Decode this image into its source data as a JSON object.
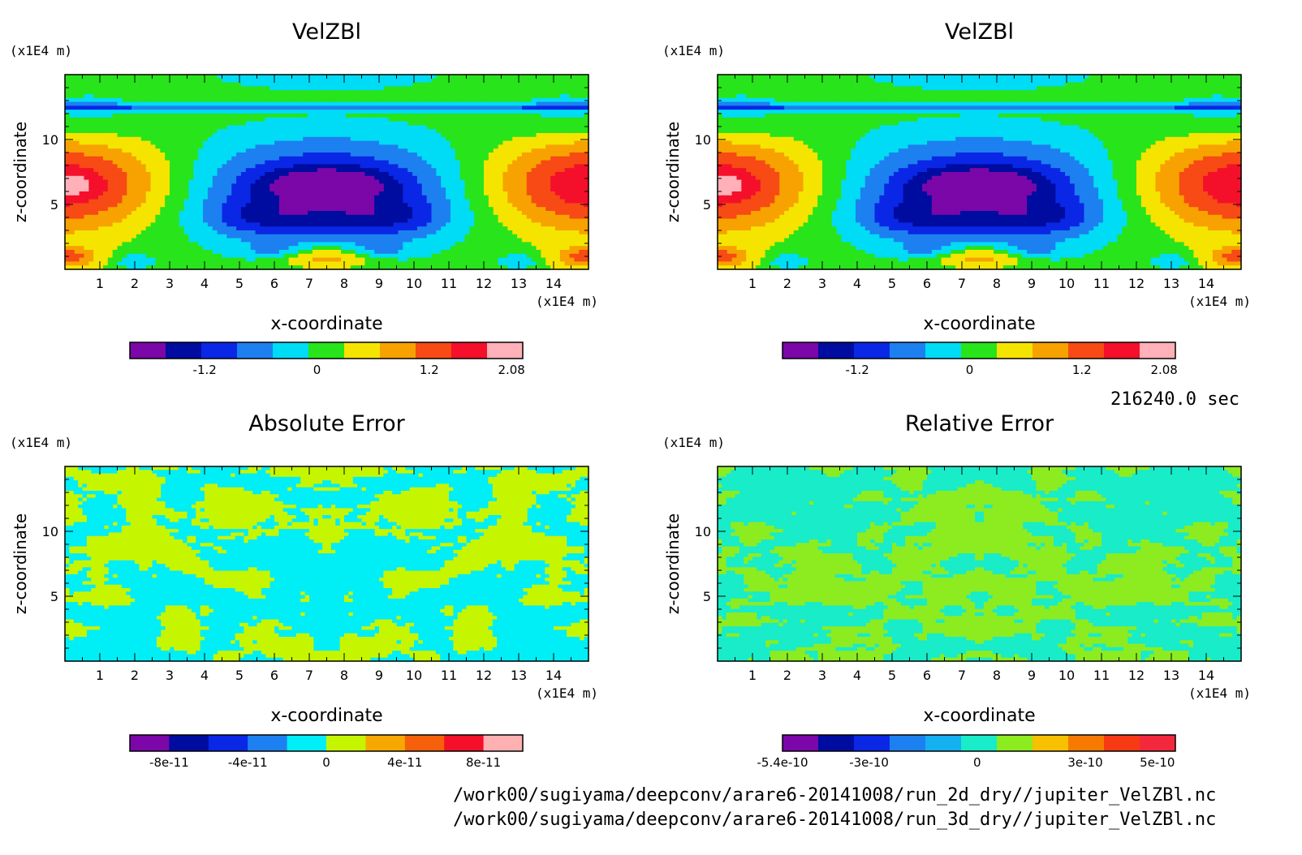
{
  "time_label": "216240.0 sec",
  "files": [
    "/work00/sugiyama/deepconv/arare6-20141008/run_2d_dry//jupiter_VelZBl.nc",
    "/work00/sugiyama/deepconv/arare6-20141008/run_3d_dry//jupiter_VelZBl.nc"
  ],
  "chart_data": [
    {
      "type": "heatmap",
      "title": "VelZBl",
      "xlabel": "x-coordinate",
      "ylabel": "z-coordinate",
      "x_unit": "(x1E4 m)",
      "y_unit": "(x1E4 m)",
      "xlim": [
        0,
        15
      ],
      "ylim": [
        0,
        15
      ],
      "xticks": [
        "1",
        "2",
        "3",
        "4",
        "5",
        "6",
        "7",
        "8",
        "9",
        "10",
        "11",
        "12",
        "13",
        "14"
      ],
      "yticks": [
        "5",
        "10"
      ],
      "field": "velocity",
      "colorbar": {
        "colors": [
          "#7b07a8",
          "#000ca0",
          "#0a27e6",
          "#1d80f0",
          "#00dcf5",
          "#28e41a",
          "#f5e400",
          "#f7a200",
          "#f74a14",
          "#f4102a",
          "#ffb0b8"
        ],
        "tick_labels": [
          "-1.2",
          "0",
          "1.2",
          "2.08"
        ],
        "tick_positions": [
          -1.2,
          0,
          1.2,
          2.08
        ],
        "range": [
          -2.0,
          2.2
        ]
      }
    },
    {
      "type": "heatmap",
      "title": "VelZBl",
      "xlabel": "x-coordinate",
      "ylabel": "z-coordinate",
      "x_unit": "(x1E4 m)",
      "y_unit": "(x1E4 m)",
      "xlim": [
        0,
        15
      ],
      "ylim": [
        0,
        15
      ],
      "xticks": [
        "1",
        "2",
        "3",
        "4",
        "5",
        "6",
        "7",
        "8",
        "9",
        "10",
        "11",
        "12",
        "13",
        "14"
      ],
      "yticks": [
        "5",
        "10"
      ],
      "field": "velocity",
      "colorbar": {
        "colors": [
          "#7b07a8",
          "#000ca0",
          "#0a27e6",
          "#1d80f0",
          "#00dcf5",
          "#28e41a",
          "#f5e400",
          "#f7a200",
          "#f74a14",
          "#f4102a",
          "#ffb0b8"
        ],
        "tick_labels": [
          "-1.2",
          "0",
          "1.2",
          "2.08"
        ],
        "tick_positions": [
          -1.2,
          0,
          1.2,
          2.08
        ],
        "range": [
          -2.0,
          2.2
        ]
      }
    },
    {
      "type": "heatmap",
      "title": "Absolute Error",
      "xlabel": "x-coordinate",
      "ylabel": "z-coordinate",
      "x_unit": "(x1E4 m)",
      "y_unit": "(x1E4 m)",
      "xlim": [
        0,
        15
      ],
      "ylim": [
        0,
        15
      ],
      "xticks": [
        "1",
        "2",
        "3",
        "4",
        "5",
        "6",
        "7",
        "8",
        "9",
        "10",
        "11",
        "12",
        "13",
        "14"
      ],
      "yticks": [
        "5",
        "10"
      ],
      "field": "noise",
      "noise_colors": [
        "#00eef5",
        "#c6f500"
      ],
      "colorbar": {
        "colors": [
          "#7b07a8",
          "#000ca0",
          "#0a27e6",
          "#1d80f0",
          "#00eef5",
          "#c6f500",
          "#f7a800",
          "#f7600a",
          "#f41028",
          "#ffb0b0"
        ],
        "tick_labels": [
          "-8e-11",
          "-4e-11",
          "0",
          "4e-11",
          "8e-11"
        ],
        "tick_positions": [
          -8e-11,
          -4e-11,
          0,
          4e-11,
          8e-11
        ],
        "range": [
          -1e-10,
          1e-10
        ]
      }
    },
    {
      "type": "heatmap",
      "title": "Relative Error",
      "xlabel": "x-coordinate",
      "ylabel": "z-coordinate",
      "x_unit": "(x1E4 m)",
      "y_unit": "(x1E4 m)",
      "xlim": [
        0,
        15
      ],
      "ylim": [
        0,
        15
      ],
      "xticks": [
        "1",
        "2",
        "3",
        "4",
        "5",
        "6",
        "7",
        "8",
        "9",
        "10",
        "11",
        "12",
        "13",
        "14"
      ],
      "yticks": [
        "5",
        "10"
      ],
      "field": "noise",
      "noise_colors": [
        "#18ecc8",
        "#8cec20"
      ],
      "colorbar": {
        "colors": [
          "#7b07a8",
          "#000ca0",
          "#0a27e6",
          "#1d80f0",
          "#14b0f0",
          "#18ecc8",
          "#8cec20",
          "#f7c000",
          "#f77a00",
          "#f73a14",
          "#f4283c"
        ],
        "tick_labels": [
          "-5.4e-10",
          "-3e-10",
          "0",
          "3e-10",
          "5e-10"
        ],
        "tick_positions": [
          -5.4e-10,
          -3e-10,
          0,
          3e-10,
          5e-10
        ],
        "range": [
          -5.4e-10,
          5.5e-10
        ]
      }
    }
  ]
}
